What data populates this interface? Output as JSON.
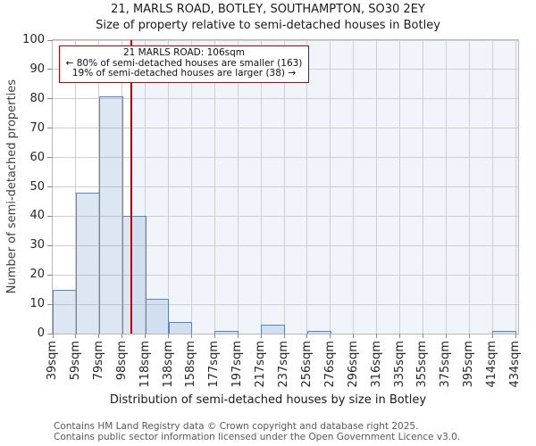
{
  "title": {
    "line1": "21, MARLS ROAD, BOTLEY, SOUTHAMPTON, SO30 2EY",
    "line2": "Size of property relative to semi-detached houses in Botley"
  },
  "annotation": {
    "line1": "21 MARLS ROAD: 106sqm",
    "line2": "← 80% of semi-detached houses are smaller (163)",
    "line3": "19% of semi-detached houses are larger (38) →"
  },
  "footer": {
    "line1": "Contains HM Land Registry data © Crown copyright and database right 2025.",
    "line2": "Contains public sector information licensed under the Open Government Licence v3.0."
  },
  "chart_data": {
    "type": "bar",
    "title": "21, MARLS ROAD, BOTLEY, SOUTHAMPTON, SO30 2EY",
    "subtitle": "Size of property relative to semi-detached houses in Botley",
    "xlabel": "Distribution of semi-detached houses by size in Botley",
    "ylabel": "Number of semi-detached properties",
    "bin_edge_labels": [
      "39sqm",
      "59sqm",
      "79sqm",
      "98sqm",
      "118sqm",
      "138sqm",
      "158sqm",
      "177sqm",
      "197sqm",
      "217sqm",
      "237sqm",
      "256sqm",
      "276sqm",
      "296sqm",
      "316sqm",
      "335sqm",
      "355sqm",
      "375sqm",
      "395sqm",
      "414sqm",
      "434sqm"
    ],
    "values": [
      15,
      48,
      81,
      40,
      12,
      4,
      0,
      1,
      0,
      3,
      0,
      1,
      0,
      0,
      0,
      0,
      0,
      0,
      0,
      1
    ],
    "x_range_sqm": [
      39,
      434
    ],
    "ylim": [
      0,
      100
    ],
    "yticks": [
      0,
      10,
      20,
      30,
      40,
      50,
      60,
      70,
      80,
      90,
      100
    ],
    "grid": true,
    "marker": {
      "label": "21 MARLS ROAD",
      "value_sqm": 106,
      "smaller_pct": 80,
      "smaller_count": 163,
      "larger_pct": 19,
      "larger_count": 38
    }
  },
  "colors": {
    "marker_red": "#cc0000",
    "annotation_border": "#bb0000",
    "bar_fill": "rgba(120,160,210,0.25)",
    "bar_border": "#5b85c2",
    "shade": "#f1f4fb",
    "grid": "#cfcfcf",
    "frame": "#b9b9b9",
    "tick": "#8a8a8a"
  }
}
